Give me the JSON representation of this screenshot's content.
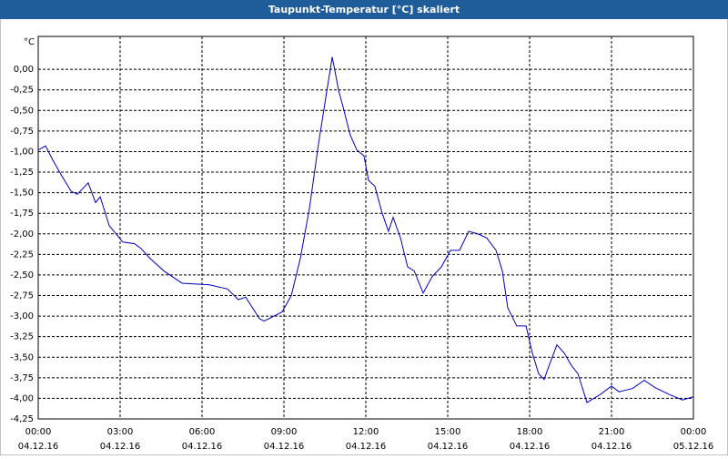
{
  "chart_data": {
    "type": "line",
    "title": "Taupunkt-Temperatur [°C] skaliert",
    "y_unit": "°C",
    "x": [
      0,
      0.27,
      0.53,
      0.87,
      1.2,
      1.43,
      1.83,
      2.1,
      2.27,
      2.6,
      3.1,
      3.53,
      3.77,
      4.1,
      4.6,
      5.27,
      6.27,
      6.93,
      7.33,
      7.6,
      8.1,
      8.27,
      8.93,
      9.27,
      9.6,
      9.93,
      10.27,
      10.53,
      10.77,
      11,
      11.2,
      11.43,
      11.67,
      11.93,
      12.1,
      12.33,
      12.6,
      12.83,
      13,
      13.27,
      13.53,
      13.77,
      14.1,
      14.43,
      14.77,
      15.1,
      15.43,
      15.77,
      16.1,
      16.43,
      16.77,
      17,
      17.2,
      17.53,
      17.87,
      18.1,
      18.33,
      18.53,
      18.77,
      19,
      19.27,
      19.53,
      19.77,
      20.1,
      20.6,
      21,
      21.27,
      21.77,
      22.2,
      22.6,
      23.1,
      23.6,
      24
    ],
    "series": [
      {
        "name": "Taupunkt-Temperatur",
        "color": "#0000c0",
        "values": [
          -0.98,
          -0.93,
          -1.1,
          -1.3,
          -1.48,
          -1.52,
          -1.38,
          -1.62,
          -1.55,
          -1.9,
          -2.1,
          -2.12,
          -2.18,
          -2.3,
          -2.45,
          -2.6,
          -2.62,
          -2.67,
          -2.8,
          -2.77,
          -3.03,
          -3.06,
          -2.95,
          -2.75,
          -2.3,
          -1.7,
          -0.9,
          -0.35,
          0.15,
          -0.25,
          -0.5,
          -0.8,
          -0.98,
          -1.05,
          -1.35,
          -1.42,
          -1.75,
          -1.97,
          -1.8,
          -2.05,
          -2.4,
          -2.45,
          -2.72,
          -2.52,
          -2.4,
          -2.2,
          -2.2,
          -1.97,
          -2.0,
          -2.05,
          -2.2,
          -2.45,
          -2.9,
          -3.12,
          -3.12,
          -3.45,
          -3.7,
          -3.77,
          -3.55,
          -3.35,
          -3.45,
          -3.6,
          -3.7,
          -4.05,
          -3.95,
          -3.85,
          -3.92,
          -3.88,
          -3.78,
          -3.87,
          -3.95,
          -4.02,
          -3.98
        ]
      }
    ],
    "xlim": [
      0,
      24
    ],
    "xticks": [
      {
        "value": 0,
        "label": "00:00"
      },
      {
        "value": 3,
        "label": "03:00"
      },
      {
        "value": 6,
        "label": "06:00"
      },
      {
        "value": 9,
        "label": "09:00"
      },
      {
        "value": 12,
        "label": "12:00"
      },
      {
        "value": 15,
        "label": "15:00"
      },
      {
        "value": 18,
        "label": "18:00"
      },
      {
        "value": 21,
        "label": "21:00"
      },
      {
        "value": 24,
        "label": "00:00"
      }
    ],
    "xtick_dates": [
      "04.12.16",
      "04.12.16",
      "04.12.16",
      "04.12.16",
      "04.12.16",
      "04.12.16",
      "04.12.16",
      "04.12.16",
      "05.12.16"
    ],
    "ylim": [
      -4.25,
      0.4
    ],
    "yticks": [
      {
        "value": 0,
        "label": "0,00"
      },
      {
        "value": -0.25,
        "label": "-0,25"
      },
      {
        "value": -0.5,
        "label": "-0,50"
      },
      {
        "value": -0.75,
        "label": "-0,75"
      },
      {
        "value": -1,
        "label": "-1,00"
      },
      {
        "value": -1.25,
        "label": "-1,25"
      },
      {
        "value": -1.5,
        "label": "-1,50"
      },
      {
        "value": -1.75,
        "label": "-1,75"
      },
      {
        "value": -2,
        "label": "-2,00"
      },
      {
        "value": -2.25,
        "label": "-2,25"
      },
      {
        "value": -2.5,
        "label": "-2,50"
      },
      {
        "value": -2.75,
        "label": "-2,75"
      },
      {
        "value": -3,
        "label": "-3,00"
      },
      {
        "value": -3.25,
        "label": "-3,25"
      },
      {
        "value": -3.5,
        "label": "-3,50"
      },
      {
        "value": -3.75,
        "label": "-3,75"
      },
      {
        "value": -4,
        "label": "-4,00"
      },
      {
        "value": -4.25,
        "label": "-4,25"
      }
    ],
    "grid": true
  }
}
